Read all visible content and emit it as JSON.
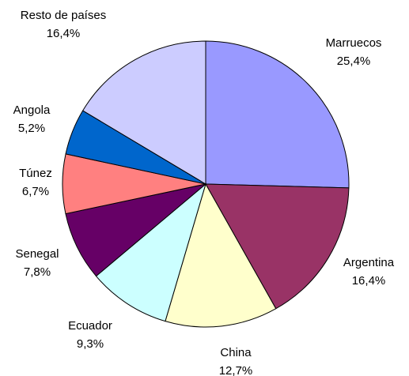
{
  "chart_data": {
    "type": "pie",
    "categories": [
      "Marruecos",
      "Argentina",
      "China",
      "Ecuador",
      "Senegal",
      "Túnez",
      "Angola",
      "Resto de países"
    ],
    "values": [
      25.4,
      16.4,
      12.7,
      9.3,
      7.8,
      6.7,
      5.2,
      16.4
    ],
    "value_labels": [
      "25,4%",
      "16,4%",
      "12,7%",
      "9,3%",
      "7,8%",
      "6,7%",
      "5,2%",
      "16,4%"
    ],
    "colors": [
      "#9999ff",
      "#993366",
      "#ffffcc",
      "#ccffff",
      "#660066",
      "#ff8080",
      "#0066cc",
      "#ccccff"
    ]
  }
}
